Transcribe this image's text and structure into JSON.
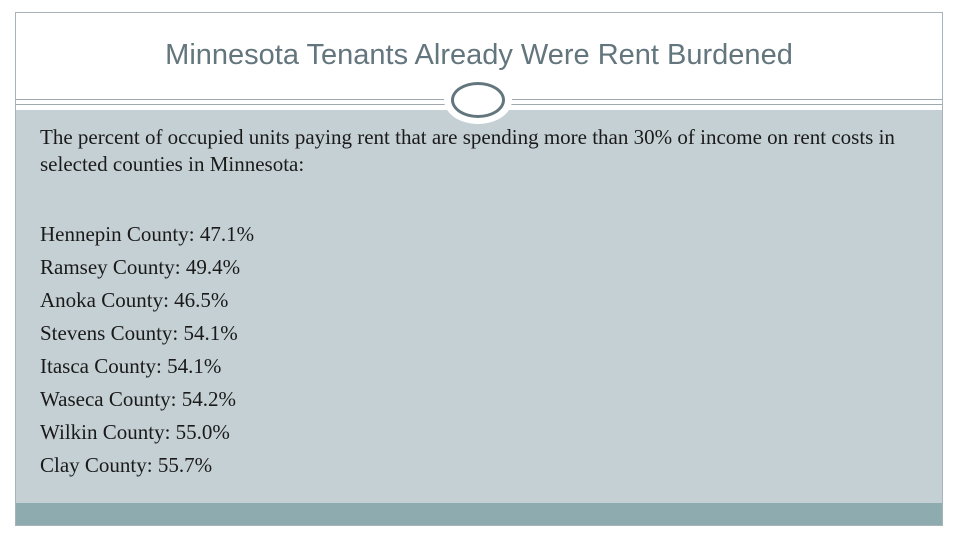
{
  "slide": {
    "title": "Minnesota Tenants Already Were Rent Burdened",
    "intro": "The percent of occupied units paying rent that are spending more than 30% of income on rent costs in selected counties in Minnesota:",
    "counties": [
      "Hennepin County: 47.1%",
      "Ramsey County: 49.4%",
      "Anoka County: 46.5%",
      "Stevens County: 54.1%",
      "Itasca County: 54.1%",
      "Waseca County: 54.2%",
      "Wilkin County: 55.0%",
      "Clay County: 55.7%"
    ]
  },
  "colors": {
    "title": "#63757d",
    "content_bg": "#c5d0d5",
    "footer_bar": "#8eabaf"
  }
}
